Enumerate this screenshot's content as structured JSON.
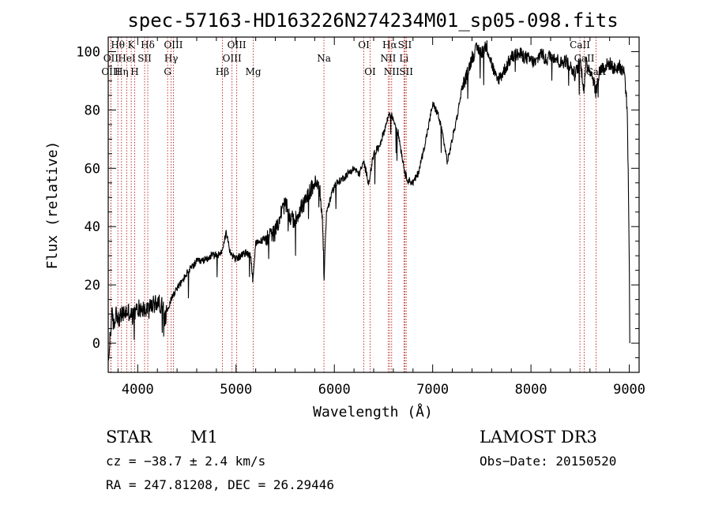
{
  "chart_data": {
    "type": "line",
    "title": "spec-57163-HD163226N274234M01_sp05-098.fits",
    "xlabel": "Wavelength (Å)",
    "ylabel": "Flux (relative)",
    "xlim": [
      3700,
      9100
    ],
    "ylim": [
      -10,
      105
    ],
    "x_ticks": [
      4000,
      5000,
      6000,
      7000,
      8000,
      9000
    ],
    "y_ticks": [
      0,
      20,
      40,
      60,
      80,
      100
    ],
    "series": [
      {
        "name": "flux",
        "anchors": [
          [
            3700,
            -8
          ],
          [
            3720,
            3
          ],
          [
            3740,
            10
          ],
          [
            3760,
            5
          ],
          [
            3780,
            12
          ],
          [
            3800,
            8
          ],
          [
            3850,
            10
          ],
          [
            3900,
            11
          ],
          [
            3950,
            9
          ],
          [
            4000,
            12
          ],
          [
            4050,
            12
          ],
          [
            4100,
            11
          ],
          [
            4150,
            13
          ],
          [
            4200,
            14
          ],
          [
            4250,
            13
          ],
          [
            4280,
            8
          ],
          [
            4300,
            12
          ],
          [
            4330,
            14
          ],
          [
            4350,
            16
          ],
          [
            4400,
            19
          ],
          [
            4450,
            21
          ],
          [
            4500,
            24
          ],
          [
            4550,
            26
          ],
          [
            4600,
            28
          ],
          [
            4650,
            28
          ],
          [
            4700,
            29
          ],
          [
            4750,
            30
          ],
          [
            4800,
            30
          ],
          [
            4850,
            31
          ],
          [
            4880,
            35
          ],
          [
            4900,
            38
          ],
          [
            4950,
            30
          ],
          [
            5000,
            29
          ],
          [
            5050,
            30
          ],
          [
            5100,
            31
          ],
          [
            5150,
            30
          ],
          [
            5170,
            22
          ],
          [
            5200,
            34
          ],
          [
            5300,
            36
          ],
          [
            5400,
            38
          ],
          [
            5450,
            44
          ],
          [
            5500,
            48
          ],
          [
            5550,
            43
          ],
          [
            5600,
            42
          ],
          [
            5650,
            46
          ],
          [
            5700,
            48
          ],
          [
            5750,
            52
          ],
          [
            5800,
            55
          ],
          [
            5850,
            53
          ],
          [
            5880,
            42
          ],
          [
            5895,
            23
          ],
          [
            5920,
            45
          ],
          [
            6000,
            54
          ],
          [
            6100,
            57
          ],
          [
            6200,
            60
          ],
          [
            6250,
            58
          ],
          [
            6300,
            62
          ],
          [
            6350,
            55
          ],
          [
            6400,
            65
          ],
          [
            6450,
            67
          ],
          [
            6500,
            72
          ],
          [
            6560,
            79
          ],
          [
            6600,
            77
          ],
          [
            6650,
            72
          ],
          [
            6700,
            62
          ],
          [
            6720,
            58
          ],
          [
            6750,
            56
          ],
          [
            6800,
            55
          ],
          [
            6850,
            58
          ],
          [
            6900,
            65
          ],
          [
            6950,
            73
          ],
          [
            7000,
            82
          ],
          [
            7050,
            79
          ],
          [
            7100,
            72
          ],
          [
            7150,
            62
          ],
          [
            7200,
            70
          ],
          [
            7250,
            78
          ],
          [
            7300,
            88
          ],
          [
            7350,
            92
          ],
          [
            7400,
            98
          ],
          [
            7450,
            101
          ],
          [
            7500,
            100
          ],
          [
            7550,
            102
          ],
          [
            7600,
            96
          ],
          [
            7650,
            90
          ],
          [
            7700,
            92
          ],
          [
            7750,
            95
          ],
          [
            7800,
            98
          ],
          [
            7850,
            99
          ],
          [
            7900,
            99
          ],
          [
            7950,
            98
          ],
          [
            8000,
            97
          ],
          [
            8050,
            96
          ],
          [
            8100,
            100
          ],
          [
            8150,
            97
          ],
          [
            8200,
            99
          ],
          [
            8250,
            98
          ],
          [
            8300,
            96
          ],
          [
            8350,
            97
          ],
          [
            8400,
            95
          ],
          [
            8450,
            92
          ],
          [
            8500,
            97
          ],
          [
            8540,
            87
          ],
          [
            8560,
            96
          ],
          [
            8600,
            94
          ],
          [
            8640,
            90
          ],
          [
            8660,
            86
          ],
          [
            8700,
            94
          ],
          [
            8750,
            95
          ],
          [
            8800,
            96
          ],
          [
            8850,
            94
          ],
          [
            8900,
            95
          ],
          [
            8950,
            93
          ],
          [
            8980,
            80
          ],
          [
            9000,
            30
          ],
          [
            9005,
            0
          ]
        ]
      }
    ],
    "line_markers": [
      {
        "label": "Hθ",
        "x": 3798,
        "row": 1
      },
      {
        "label": "OII",
        "x": 3727,
        "row": 2
      },
      {
        "label": "OIII",
        "x": 3727,
        "row": 3
      },
      {
        "label": "K",
        "x": 3934,
        "row": 1
      },
      {
        "label": "HeI",
        "x": 3889,
        "row": 2
      },
      {
        "label": "Hη",
        "x": 3835,
        "row": 3
      },
      {
        "label": "H",
        "x": 3969,
        "row": 3
      },
      {
        "label": "Hδ",
        "x": 4102,
        "row": 1
      },
      {
        "label": "SII",
        "x": 4070,
        "row": 2
      },
      {
        "label": "OIII",
        "x": 4363,
        "row": 1
      },
      {
        "label": "Hγ",
        "x": 4340,
        "row": 2
      },
      {
        "label": "G",
        "x": 4304,
        "row": 3
      },
      {
        "label": "OIII",
        "x": 5007,
        "row": 1
      },
      {
        "label": "OIII",
        "x": 4959,
        "row": 2
      },
      {
        "label": "Hβ",
        "x": 4861,
        "row": 3
      },
      {
        "label": "Mg",
        "x": 5175,
        "row": 3
      },
      {
        "label": "Na",
        "x": 5894,
        "row": 2
      },
      {
        "label": "OI",
        "x": 6300,
        "row": 1
      },
      {
        "label": "OI",
        "x": 6364,
        "row": 3
      },
      {
        "label": "Hα",
        "x": 6563,
        "row": 1
      },
      {
        "label": "NII",
        "x": 6548,
        "row": 2
      },
      {
        "label": "NII",
        "x": 6583,
        "row": 3
      },
      {
        "label": "SII",
        "x": 6717,
        "row": 1
      },
      {
        "label": "Li",
        "x": 6708,
        "row": 2
      },
      {
        "label": "SII",
        "x": 6731,
        "row": 3
      },
      {
        "label": "CaII",
        "x": 8498,
        "row": 1
      },
      {
        "label": "CaII",
        "x": 8542,
        "row": 2
      },
      {
        "label": "CaII",
        "x": 8662,
        "row": 3
      }
    ]
  },
  "info": {
    "object_class": "STAR",
    "subclass": "M1",
    "survey": "LAMOST DR3",
    "cz": "cz = −38.7 ± 2.4 km/s",
    "obs_date": "Obs−Date: 20150520",
    "coords": "RA = 247.81208, DEC =  26.29446"
  }
}
